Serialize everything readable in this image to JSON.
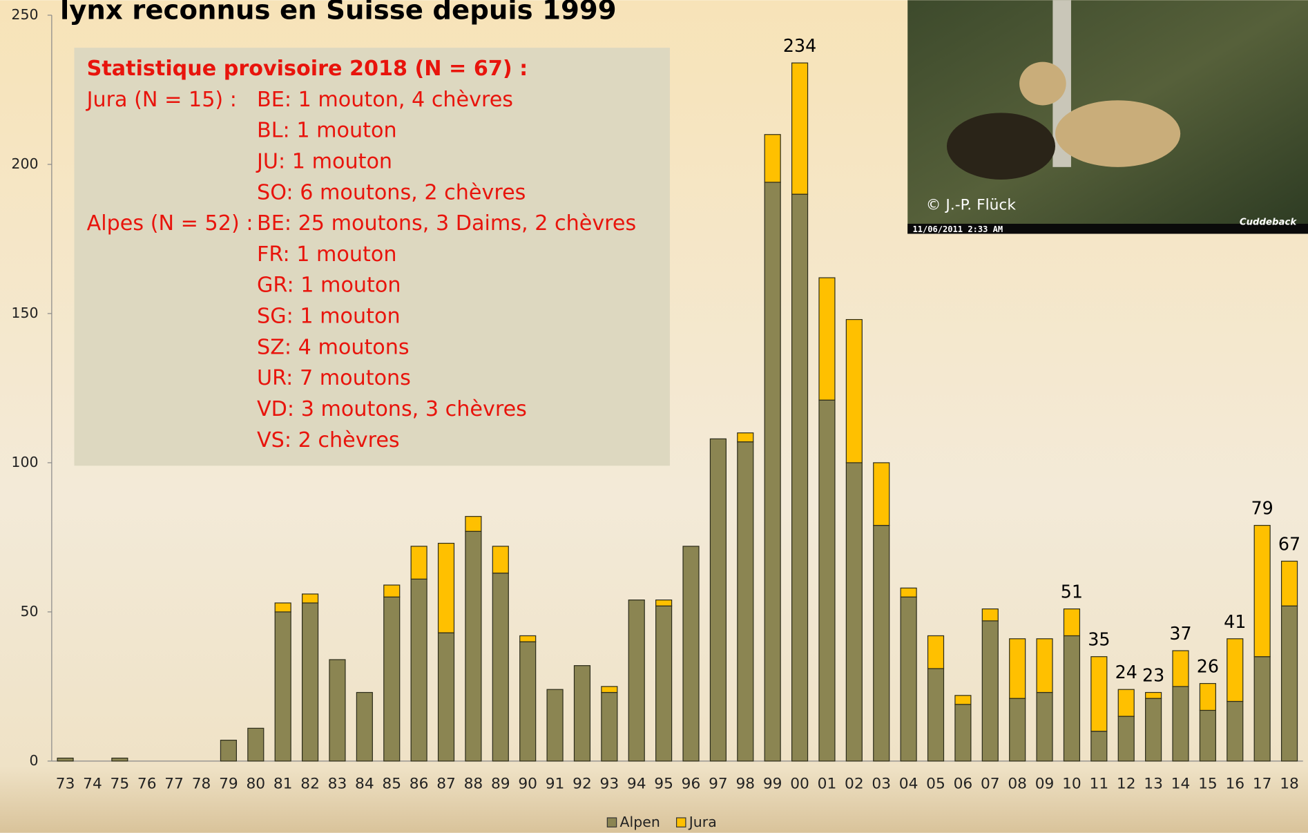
{
  "chart_data": {
    "type": "stacked_bar",
    "title": "lynx reconnus en Suisse depuis 1999",
    "categories": [
      "73",
      "74",
      "75",
      "76",
      "77",
      "78",
      "79",
      "80",
      "81",
      "82",
      "83",
      "84",
      "85",
      "86",
      "87",
      "88",
      "89",
      "90",
      "91",
      "92",
      "93",
      "94",
      "95",
      "96",
      "97",
      "98",
      "99",
      "00",
      "01",
      "02",
      "03",
      "04",
      "05",
      "06",
      "07",
      "08",
      "09",
      "10",
      "11",
      "12",
      "13",
      "14",
      "15",
      "16",
      "17",
      "18"
    ],
    "series": [
      {
        "name": "Alpen",
        "color": "#8b8552",
        "values": [
          1,
          0,
          1,
          0,
          0,
          0,
          7,
          11,
          50,
          53,
          34,
          23,
          55,
          61,
          43,
          77,
          63,
          40,
          24,
          32,
          23,
          54,
          52,
          72,
          108,
          107,
          194,
          190,
          121,
          100,
          79,
          55,
          31,
          19,
          47,
          21,
          23,
          42,
          10,
          15,
          21,
          25,
          17,
          20,
          35,
          52
        ]
      },
      {
        "name": "Jura",
        "color": "#ffc000",
        "values": [
          0,
          0,
          0,
          0,
          0,
          0,
          0,
          0,
          3,
          3,
          0,
          0,
          4,
          11,
          30,
          5,
          9,
          2,
          0,
          0,
          2,
          0,
          2,
          0,
          0,
          3,
          16,
          44,
          41,
          48,
          21,
          3,
          11,
          3,
          4,
          20,
          18,
          9,
          25,
          9,
          2,
          12,
          9,
          21,
          44,
          15
        ]
      }
    ],
    "totals": [
      null,
      null,
      null,
      null,
      null,
      null,
      null,
      null,
      null,
      null,
      null,
      null,
      null,
      null,
      null,
      null,
      null,
      null,
      null,
      null,
      null,
      null,
      null,
      null,
      null,
      null,
      null,
      234,
      null,
      null,
      null,
      null,
      null,
      null,
      null,
      null,
      null,
      51,
      35,
      24,
      23,
      37,
      26,
      41,
      79,
      67
    ],
    "ylim": [
      0,
      250
    ],
    "yticks": [
      0,
      50,
      100,
      150,
      200,
      250
    ],
    "legend": "bottom"
  },
  "annotation_box": {
    "heading": "Statistique provisoire 2018 (N = 67) :",
    "groups": [
      {
        "label": "Jura (N = 15) :",
        "lines": [
          "BE: 1 mouton, 4 chèvres",
          "BL: 1 mouton",
          "JU: 1 mouton",
          "SO: 6 moutons, 2 chèvres"
        ]
      },
      {
        "label": "Alpes (N = 52) :",
        "lines": [
          "BE: 25 moutons, 3 Daims, 2 chèvres",
          "FR: 1 mouton",
          "GR: 1 mouton",
          "SG: 1 mouton",
          "SZ: 4 moutons",
          "UR: 7 moutons",
          "VD: 3 moutons, 3 chèvres",
          "VS: 2 chèvres"
        ]
      }
    ]
  },
  "photo": {
    "credit": "© J.-P. Flück",
    "timestamp": "11/06/2011   2:33 AM",
    "brand": "Cuddeback"
  }
}
